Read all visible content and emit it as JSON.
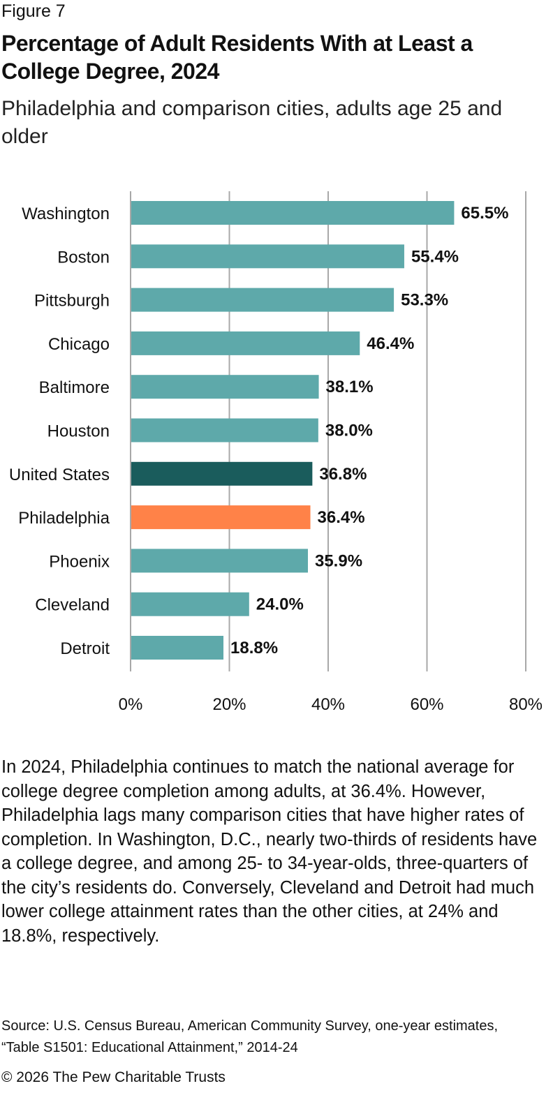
{
  "figure_label": "Figure 7",
  "title": "Percentage of Adult Residents With at Least a College Degree, 2024",
  "subtitle": "Philadelphia and comparison cities, adults age 25 and older",
  "chart_data": {
    "type": "bar",
    "orientation": "horizontal",
    "title": "Percentage of Adult Residents With at Least a College Degree, 2024",
    "subtitle": "Philadelphia and comparison cities, adults age 25 and older",
    "xlabel": "",
    "ylabel": "",
    "categories": [
      "Washington",
      "Boston",
      "Pittsburgh",
      "Chicago",
      "Baltimore",
      "Houston",
      "United States",
      "Philadelphia",
      "Phoenix",
      "Cleveland",
      "Detroit"
    ],
    "values": [
      65.5,
      55.4,
      53.3,
      46.4,
      38.1,
      38.0,
      36.8,
      36.4,
      35.9,
      24.0,
      18.8
    ],
    "value_labels": [
      "65.5%",
      "55.4%",
      "53.3%",
      "46.4%",
      "38.1%",
      "38.0%",
      "36.8%",
      "36.4%",
      "35.9%",
      "24.0%",
      "18.8%"
    ],
    "colors": [
      "#5ea9aa",
      "#5ea9aa",
      "#5ea9aa",
      "#5ea9aa",
      "#5ea9aa",
      "#5ea9aa",
      "#1a5c5c",
      "#ff8248",
      "#5ea9aa",
      "#5ea9aa",
      "#5ea9aa"
    ],
    "xlim": [
      0,
      80
    ],
    "xticks": [
      0,
      20,
      40,
      60,
      80
    ],
    "xtick_labels": [
      "0%",
      "20%",
      "40%",
      "60%",
      "80%"
    ],
    "grid": true,
    "legend": "none"
  },
  "body_text": "In 2024, Philadelphia continues to match the national average for college degree completion among adults, at 36.4%. However, Philadelphia lags many comparison cities that have higher rates of completion. In Washington, D.C., nearly two-thirds of residents have a college degree, and among 25- to 34-year-olds, three-quarters of the city’s residents do. Conversely, Cleveland and Detroit had much lower college attainment rates than the other cities, at 24% and 18.8%, respectively.",
  "source": "Source: U.S. Census Bureau, American Community Survey, one-year estimates, “Table S1501: Educational Attainment,” 2014-24",
  "copyright": "© 2026 The Pew Charitable Trusts"
}
